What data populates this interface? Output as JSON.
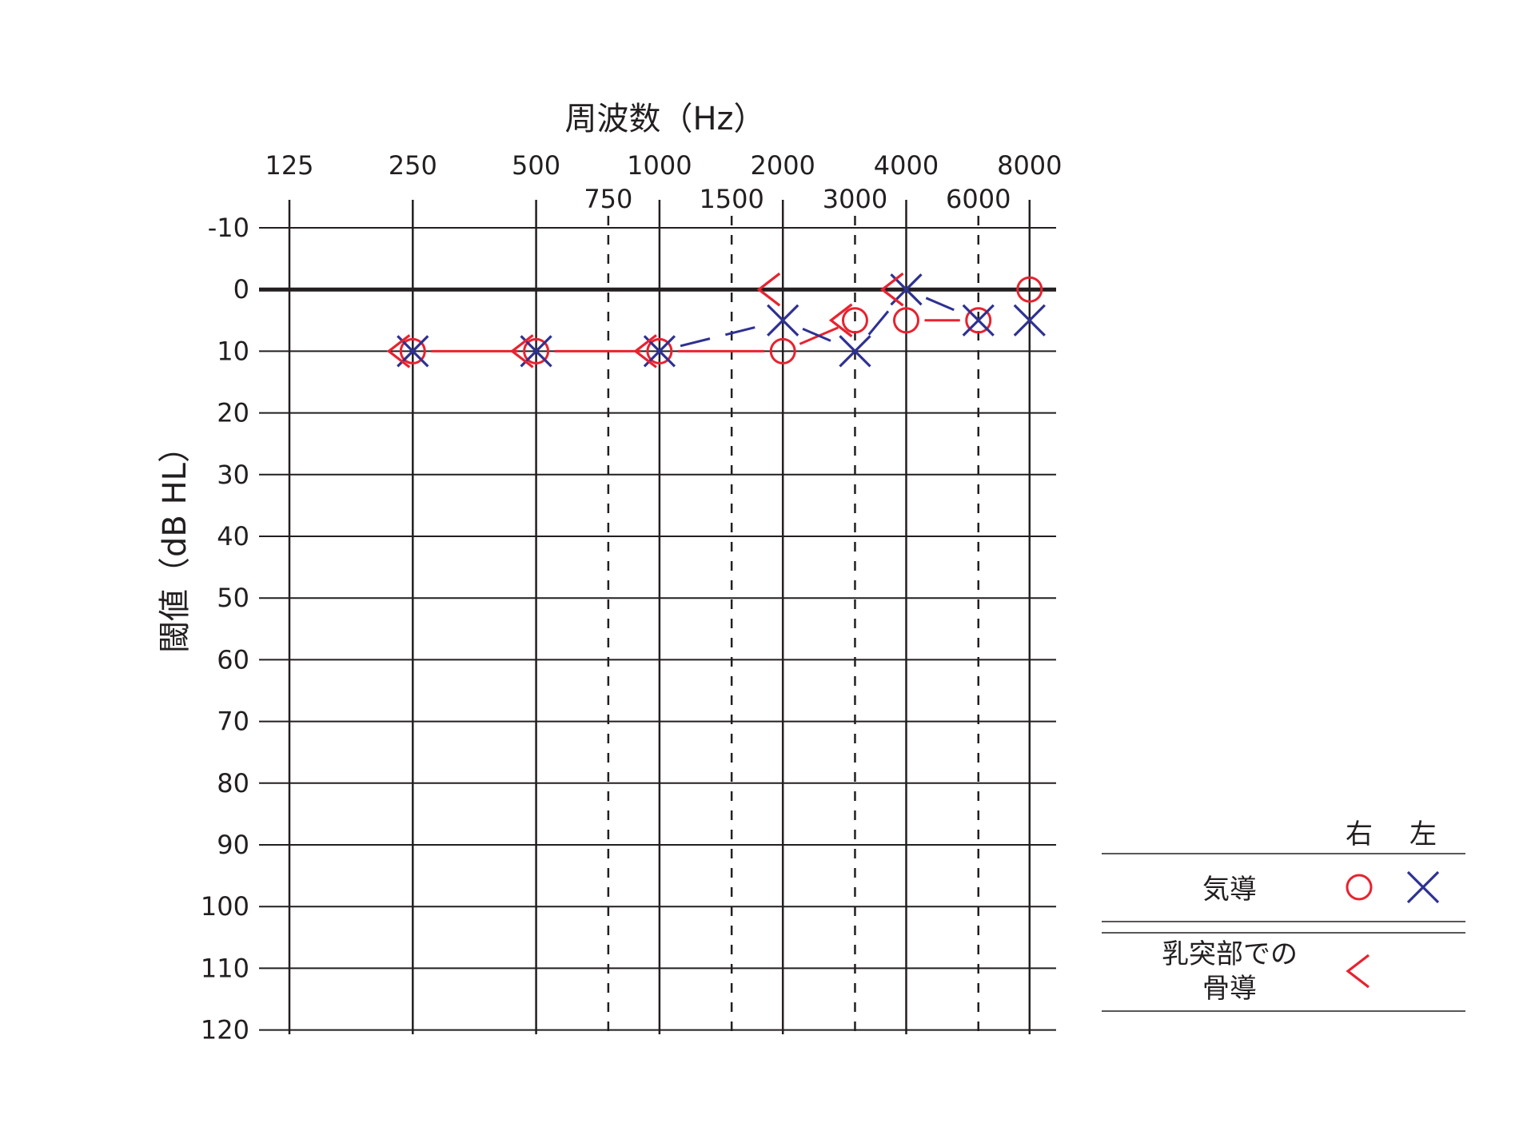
{
  "chart_data": {
    "type": "line",
    "title": "",
    "xlabel": "周波数（Hz）",
    "ylabel": "閾値（dB HL）",
    "x_scale": "log2",
    "xlim": [
      125,
      8000
    ],
    "ylim": [
      -10,
      120
    ],
    "y_inverted": true,
    "grid": true,
    "x_ticks_upper": [
      "125",
      "250",
      "500",
      "1000",
      "2000",
      "4000",
      "8000"
    ],
    "x_ticks_lower": [
      "750",
      "1500",
      "3000",
      "6000"
    ],
    "y_ticks": [
      "-10",
      "0",
      "10",
      "20",
      "30",
      "40",
      "50",
      "60",
      "70",
      "80",
      "90",
      "100",
      "110",
      "120"
    ],
    "series": [
      {
        "name": "右 気導",
        "marker": "circle",
        "color": "#e8222f",
        "line": "solid",
        "points": [
          {
            "x": 250,
            "y": 10
          },
          {
            "x": 500,
            "y": 10
          },
          {
            "x": 1000,
            "y": 10
          },
          {
            "x": 2000,
            "y": 10
          },
          {
            "x": 3000,
            "y": 5
          },
          {
            "x": 4000,
            "y": 5
          },
          {
            "x": 6000,
            "y": 5
          },
          {
            "x": 8000,
            "y": 0
          }
        ],
        "segments": [
          [
            0,
            1
          ],
          [
            1,
            2
          ],
          [
            2,
            3
          ],
          [
            3,
            4
          ],
          [
            5,
            6
          ]
        ]
      },
      {
        "name": "左 気導",
        "marker": "cross",
        "color": "#2e3192",
        "line": "dashed",
        "points": [
          {
            "x": 250,
            "y": 10
          },
          {
            "x": 500,
            "y": 10
          },
          {
            "x": 1000,
            "y": 10
          },
          {
            "x": 2000,
            "y": 5
          },
          {
            "x": 3000,
            "y": 10
          },
          {
            "x": 4000,
            "y": 0
          },
          {
            "x": 6000,
            "y": 5
          },
          {
            "x": 8000,
            "y": 5
          }
        ],
        "segments": [
          [
            2,
            3
          ],
          [
            3,
            4
          ],
          [
            4,
            5
          ],
          [
            5,
            6
          ]
        ]
      },
      {
        "name": "乳突部での骨導",
        "marker": "angle-left",
        "color": "#e8222f",
        "line": "none",
        "points": [
          {
            "x": 250,
            "y": 10
          },
          {
            "x": 500,
            "y": 10
          },
          {
            "x": 1000,
            "y": 10
          },
          {
            "x": 2000,
            "y": 0
          },
          {
            "x": 3000,
            "y": 5
          },
          {
            "x": 4000,
            "y": 0
          }
        ]
      }
    ],
    "legend": {
      "placement": "bottom-right",
      "col_right": "右",
      "col_left": "左",
      "row_air": "気導",
      "row_bone_line1": "乳突部での",
      "row_bone_line2": "骨導"
    }
  }
}
